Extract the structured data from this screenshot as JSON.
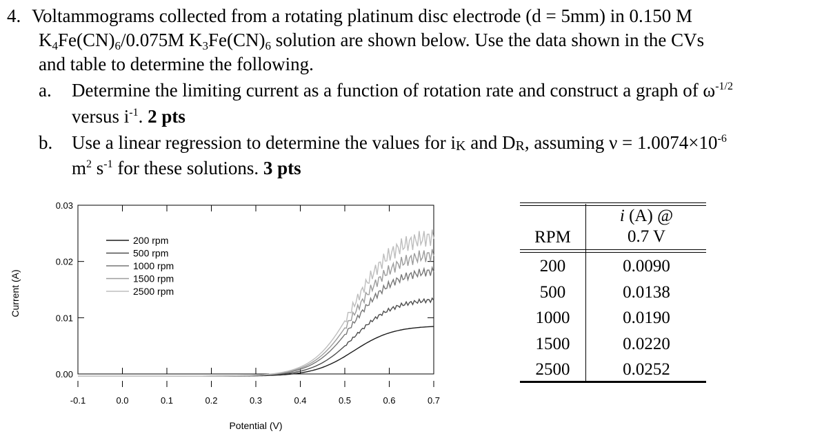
{
  "problem": {
    "number": "4.",
    "intro_line1": "Voltammograms collected from a rotating platinum disc electrode (d = 5mm) in 0.150 M",
    "intro_line2_parts": [
      "K",
      "4",
      "Fe(CN)",
      "6",
      "/0.075M K",
      "3",
      "Fe(CN)",
      "6",
      " solution are shown below. Use the data shown in the CVs"
    ],
    "intro_line3": "and table to determine the following.",
    "part_a": {
      "letter": "a.",
      "text1": "Determine the limiting current as a function of rotation rate and construct a graph of ω",
      "sup1": "-1/2",
      "text2": "versus i",
      "sup2": "-1",
      "text3": ". ",
      "points": "2 pts"
    },
    "part_b": {
      "letter": "b.",
      "text1": "Use a linear regression to determine the values for i",
      "sub1": "K",
      "text2": " and D",
      "sub2": "R",
      "text3": ", assuming ν = 1.0074×10",
      "sup3": "-6",
      "text4": "m",
      "sup4": "2",
      "text5": " s",
      "sup5": "-1",
      "text6": " for these solutions. ",
      "points": "3 pts"
    }
  },
  "chart_data": {
    "type": "line",
    "xlabel": "Potential (V)",
    "ylabel": "Current (A)",
    "xlim": [
      -0.1,
      0.7
    ],
    "ylim": [
      0.0,
      0.03
    ],
    "xticks": [
      -0.1,
      0.0,
      0.1,
      0.2,
      0.3,
      0.4,
      0.5,
      0.6,
      0.7
    ],
    "xtick_labels": [
      "-0.1",
      "0.0",
      "0.1",
      "0.2",
      "0.3",
      "0.4",
      "0.5",
      "0.6",
      "0.7"
    ],
    "yticks": [
      0.0,
      0.01,
      0.02,
      0.03
    ],
    "ytick_labels": [
      "0.00",
      "0.01",
      "0.02",
      "0.03"
    ],
    "legend_position": "top-left",
    "series": [
      {
        "name": "200 rpm",
        "color": "#1a1a1a",
        "limiting_current": 0.009,
        "wobble": 0.0
      },
      {
        "name": "500 rpm",
        "color": "#4d4d4d",
        "limiting_current": 0.0138,
        "wobble": 0.0004
      },
      {
        "name": "1000 rpm",
        "color": "#777777",
        "limiting_current": 0.019,
        "wobble": 0.0008
      },
      {
        "name": "1500 rpm",
        "color": "#9c9c9c",
        "limiting_current": 0.022,
        "wobble": 0.0012
      },
      {
        "name": "2500 rpm",
        "color": "#bdbdbd",
        "limiting_current": 0.0252,
        "wobble": 0.0016
      }
    ]
  },
  "table": {
    "headers": {
      "rpm": "RPM",
      "current_line1": "i",
      "current_line1_rest": " (A) @",
      "current_line2": "0.7 V"
    },
    "rows": [
      {
        "rpm": "200",
        "current": "0.0090"
      },
      {
        "rpm": "500",
        "current": "0.0138"
      },
      {
        "rpm": "1000",
        "current": "0.0190"
      },
      {
        "rpm": "1500",
        "current": "0.0220"
      },
      {
        "rpm": "2500",
        "current": "0.0252"
      }
    ]
  }
}
